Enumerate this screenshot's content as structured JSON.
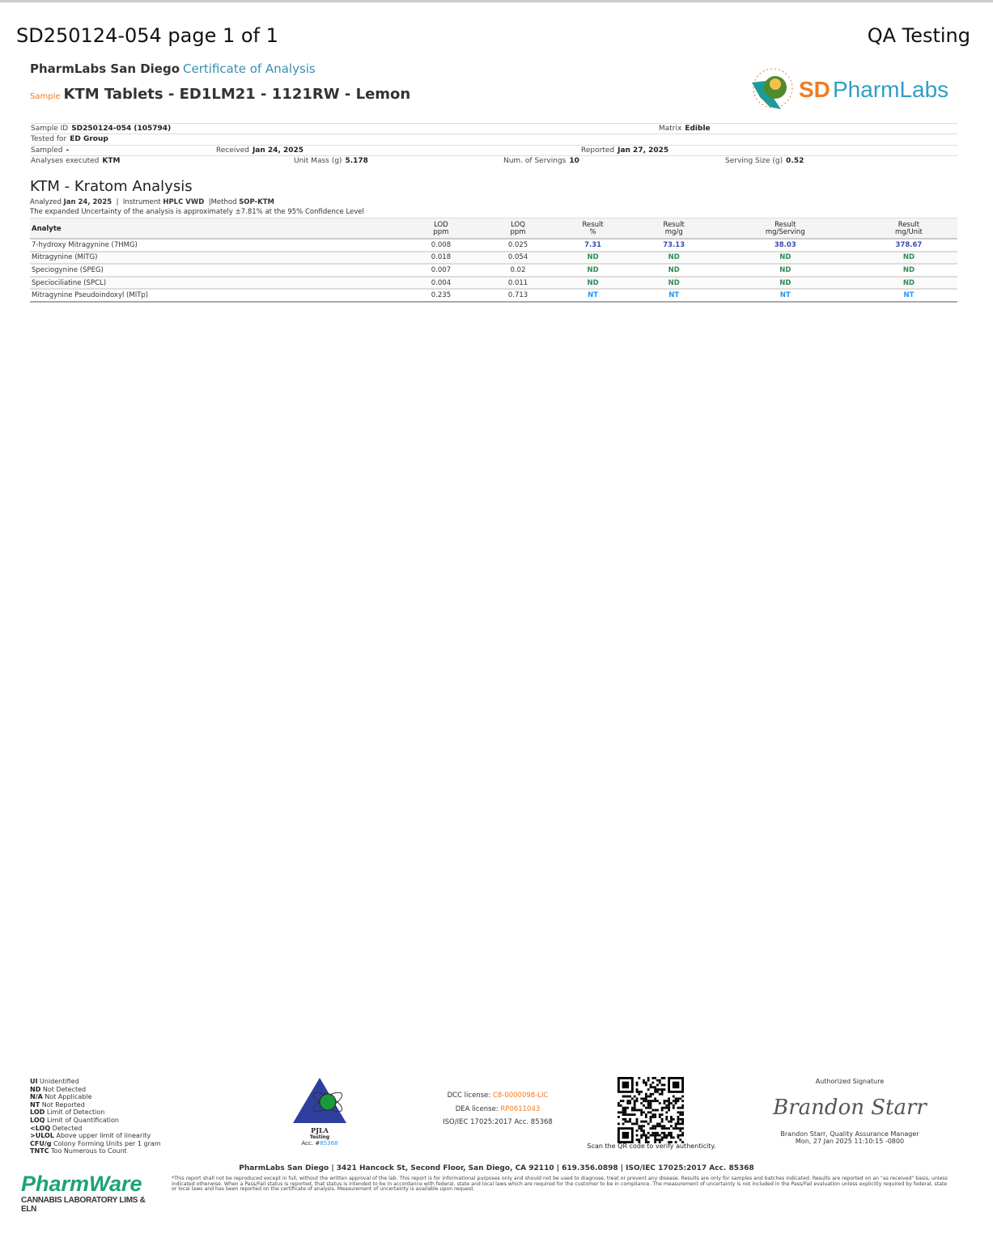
{
  "header": {
    "title": "SD250124-054 page 1 of 1",
    "right": "QA Testing"
  },
  "lab": {
    "name": "PharmLabs San Diego",
    "doc_type": "Certificate of Analysis",
    "sample_tag": "Sample",
    "sample_name": "KTM Tablets - ED1LM21 - 1121RW - Lemon",
    "logo_text": "SDPharmLabs",
    "logo_ring": "PharmLabs"
  },
  "info": {
    "sample_id_label": "Sample ID",
    "sample_id": "SD250124-054 (105794)",
    "matrix_label": "Matrix",
    "matrix": "Edible",
    "tested_for_label": "Tested for",
    "tested_for": "ED Group",
    "sampled_label": "Sampled",
    "sampled": "-",
    "received_label": "Received",
    "received": "Jan 24, 2025",
    "reported_label": "Reported",
    "reported": "Jan 27, 2025",
    "analyses_label": "Analyses executed",
    "analyses": "KTM",
    "unit_mass_label": "Unit Mass (g)",
    "unit_mass": "5.178",
    "servings_label": "Num. of Servings",
    "servings": "10",
    "serving_size_label": "Serving Size (g)",
    "serving_size": "0.52"
  },
  "analysis": {
    "title": "KTM - Kratom Analysis",
    "analyzed_label": "Analyzed",
    "analyzed": "Jan 24, 2025",
    "instrument_label": "Instrument",
    "instrument": "HPLC VWD",
    "method_label": "Method",
    "method": "SOP-KTM",
    "uncertainty": "The expanded Uncertainty of the analysis is approximately ±7.81% at the 95% Confidence Level",
    "columns": [
      {
        "l1": "Analyte",
        "l2": ""
      },
      {
        "l1": "LOD",
        "l2": "ppm"
      },
      {
        "l1": "LOQ",
        "l2": "ppm"
      },
      {
        "l1": "Result",
        "l2": "%"
      },
      {
        "l1": "Result",
        "l2": "mg/g"
      },
      {
        "l1": "Result",
        "l2": "mg/Serving"
      },
      {
        "l1": "Result",
        "l2": "mg/Unit"
      }
    ],
    "rows": [
      [
        "7-hydroxy Mitragynine (7HMG)",
        "0.008",
        "0.025",
        "7.31",
        "73.13",
        "38.03",
        "378.67"
      ],
      [
        "Mitragynine (MITG)",
        "0.018",
        "0.054",
        "ND",
        "ND",
        "ND",
        "ND"
      ],
      [
        "Speciogynine (SPEG)",
        "0.007",
        "0.02",
        "ND",
        "ND",
        "ND",
        "ND"
      ],
      [
        "Speciociliatine (SPCL)",
        "0.004",
        "0.011",
        "ND",
        "ND",
        "ND",
        "ND"
      ],
      [
        "Mitragynine Pseudoindoxyl (MITp)",
        "0.235",
        "0.713",
        "NT",
        "NT",
        "NT",
        "NT"
      ]
    ]
  },
  "legend": [
    [
      "UI",
      "Unidentified"
    ],
    [
      "ND",
      "Not Detected"
    ],
    [
      "N/A",
      "Not Applicable"
    ],
    [
      "NT",
      "Not Reported"
    ],
    [
      "LOD",
      "Limit of Detection"
    ],
    [
      "LOQ",
      "Limit of Quantification"
    ],
    [
      "<LOQ",
      "Detected"
    ],
    [
      ">ULOL",
      "Above upper limit of linearity"
    ],
    [
      "CFU/g",
      "Colony Forming Units per 1 gram"
    ],
    [
      "TNTC",
      "Too Numerous to Count"
    ]
  ],
  "pjla": {
    "name": "PJLA",
    "sub": "Testing",
    "acc_label": "Acc. #",
    "acc": "85368"
  },
  "licenses": {
    "dcc_label": "DCC license:",
    "dcc": "C8-0000098-LIC",
    "dea_label": "DEA license:",
    "dea": "RP0611043",
    "iso": "ISO/IEC 17025:2017 Acc. 85368"
  },
  "qr_caption": "Scan the QR code to verify authenticity.",
  "signature": {
    "label": "Authorized Signature",
    "script": "Brandon Starr",
    "name": "Brandon Starr, Quality Assurance Manager",
    "date": "Mon, 27 Jan 2025 11:10:15 -0800"
  },
  "footer": {
    "address": "PharmLabs San Diego | 3421 Hancock St, Second Floor, San Diego, CA 92110 | 619.356.0898 | ISO/IEC 17025:2017 Acc. 85368",
    "disclaimer": "*This report shall not be reproduced except in full, without the written approval of the lab. This report is for informational purposes only and should not be used to diagnose, treat or prevent any disease. Results are only for samples and batches indicated. Results are reported on an \"as received\" basis, unless indicated otherwise. When a Pass/Fail status is reported, that status is intended to be in accordance with federal, state and local laws which are required for the customer to be in compliance. The measurement of uncertainty is not included in the Pass/Fail evaluation unless explicitly required by federal, state or local laws and has been reported on the certificate of analysis. Measurement of uncertainty is available upon request.",
    "pharmware": "PharmWare",
    "pharmware_sub": "CANNABIS LABORATORY LIMS & ELN"
  },
  "colors": {
    "value": "#3b4bb5",
    "nd": "#2e8b57",
    "nt": "#2196f3",
    "orange": "#f07b22",
    "teal": "#3a8fb0"
  }
}
